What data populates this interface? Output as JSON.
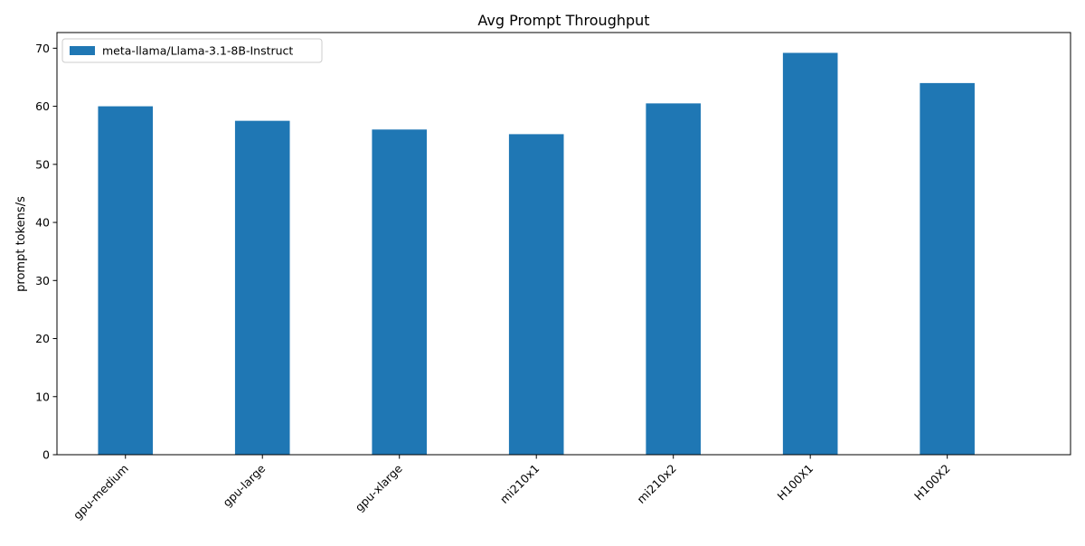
{
  "chart_data": {
    "type": "bar",
    "title": "Avg Prompt Throughput",
    "xlabel": "",
    "ylabel": "prompt tokens/s",
    "categories": [
      "gpu-medium",
      "gpu-large",
      "gpu-xlarge",
      "mi210x1",
      "mi210x2",
      "H100X1",
      "H100X2"
    ],
    "series": [
      {
        "name": "meta-llama/Llama-3.1-8B-Instruct",
        "values": [
          60.0,
          57.5,
          56.0,
          55.2,
          60.5,
          69.2,
          64.0
        ],
        "color": "#1f77b4"
      }
    ],
    "ylim": [
      0,
      72.7
    ],
    "yticks": [
      0,
      10,
      20,
      30,
      40,
      50,
      60,
      70
    ],
    "grid": false,
    "legend_position": "top-left"
  }
}
